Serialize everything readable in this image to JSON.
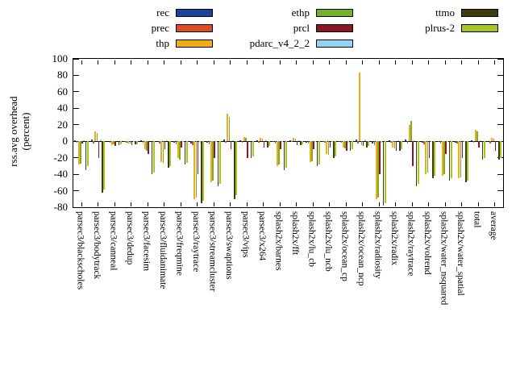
{
  "axis": {
    "ylabel_line1": "rss.avg overhead",
    "ylabel_line2": "(percent)"
  },
  "chart_data": {
    "type": "bar",
    "title": "",
    "xlabel": "",
    "ylabel": "rss.avg overhead (percent)",
    "ylim": [
      -80,
      100
    ],
    "yticks": [
      100,
      80,
      60,
      40,
      20,
      0,
      -20,
      -40,
      -60,
      -80
    ],
    "grid": false,
    "legend_position": "top",
    "legend_columns": [
      [
        0,
        1,
        2
      ],
      [
        3,
        4,
        5
      ],
      [
        6,
        7
      ]
    ],
    "categories": [
      "parsec3/blackscholes",
      "parsec3/bodytrack",
      "parsec3/canneal",
      "parsec3/dedup",
      "parsec3/facesim",
      "parsec3/fluidanimate",
      "parsec3/freqmine",
      "parsec3/raytrace",
      "parsec3/streamcluster",
      "parsec3/swaptions",
      "parsec3/vips",
      "parsec3/x264",
      "splash2x/barnes",
      "splash2x/fft",
      "splash2x/lu_cb",
      "splash2x/lu_ncb",
      "splash2x/ocean_cp",
      "splash2x/ocean_ncp",
      "splash2x/radiosity",
      "splash2x/radix",
      "splash2x/raytrace",
      "splash2x/volrend",
      "splash2x/water_nsquared",
      "splash2x/water_spatial",
      "total",
      "average"
    ],
    "series": [
      {
        "name": "rec",
        "color": "#1b4596",
        "values": [
          1,
          2,
          0,
          -1,
          1,
          0,
          -2,
          -3,
          -2,
          2,
          1,
          1,
          -1,
          1,
          -2,
          -1,
          -1,
          2,
          -3,
          1,
          2,
          -2,
          -1,
          -2,
          1,
          0
        ]
      },
      {
        "name": "prec",
        "color": "#e04a20",
        "values": [
          -2,
          -3,
          -2,
          -2,
          -2,
          -3,
          -4,
          -5,
          -4,
          -2,
          -2,
          -2,
          -3,
          -1,
          -3,
          -2,
          -2,
          -3,
          -5,
          -2,
          -3,
          -4,
          -3,
          -3,
          -2,
          -3
        ]
      },
      {
        "name": "thp",
        "color": "#f0ad18",
        "values": [
          -28,
          12,
          -5,
          -3,
          -10,
          -25,
          -20,
          -70,
          -50,
          33,
          5,
          4,
          -30,
          4,
          -25,
          -15,
          -8,
          83,
          -70,
          -8,
          20,
          -40,
          -42,
          -45,
          14,
          4
        ]
      },
      {
        "name": "ethp",
        "color": "#74b02a",
        "values": [
          -27,
          10,
          -4,
          -3,
          -12,
          -26,
          -22,
          -68,
          -48,
          30,
          4,
          3,
          -28,
          3,
          -24,
          -16,
          -9,
          -5,
          -68,
          -9,
          25,
          -38,
          -40,
          -44,
          12,
          3
        ]
      },
      {
        "name": "prcl",
        "color": "#8c1626",
        "values": [
          -3,
          -20,
          -6,
          -5,
          -15,
          -10,
          -8,
          -40,
          -20,
          -10,
          -20,
          -8,
          -10,
          -5,
          -10,
          -8,
          -12,
          -6,
          -40,
          -12,
          -30,
          -20,
          -15,
          -20,
          -8,
          -12
        ]
      },
      {
        "name": "pdarc_v4_2_2",
        "color": "#92d4f5",
        "values": [
          1,
          2,
          0,
          -1,
          0,
          1,
          -1,
          -2,
          -1,
          1,
          0,
          1,
          -1,
          1,
          -1,
          -1,
          -2,
          2,
          -2,
          1,
          1,
          -1,
          -1,
          -1,
          1,
          0
        ]
      },
      {
        "name": "ttmo",
        "color": "#3f3d10",
        "values": [
          -35,
          -62,
          -5,
          -4,
          -40,
          -32,
          -28,
          -75,
          -55,
          -70,
          -20,
          -8,
          -35,
          -5,
          -30,
          -20,
          -12,
          -8,
          -78,
          -12,
          -55,
          -45,
          -48,
          -50,
          -22,
          -22
        ]
      },
      {
        "name": "plrus-2",
        "color": "#a6c71e",
        "values": [
          -30,
          -58,
          -4,
          -4,
          -38,
          -30,
          -26,
          -72,
          -52,
          -65,
          -18,
          -6,
          -32,
          -4,
          -28,
          -18,
          -10,
          -6,
          -75,
          -10,
          -52,
          -42,
          -45,
          -48,
          -20,
          -20
        ]
      }
    ]
  }
}
